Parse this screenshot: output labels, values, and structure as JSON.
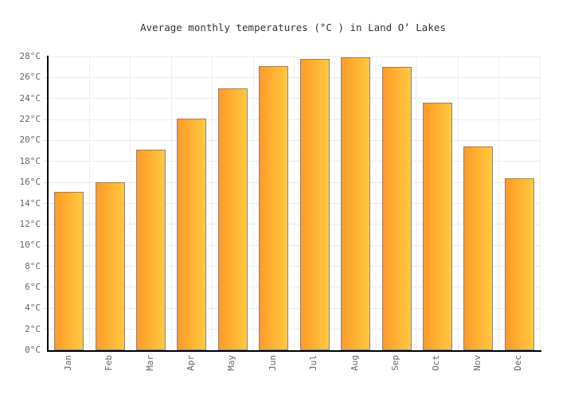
{
  "chart_data": {
    "type": "bar",
    "title": "Average monthly temperatures (°C ) in Land O’ Lakes",
    "categories": [
      "Jan",
      "Feb",
      "Mar",
      "Apr",
      "May",
      "Jun",
      "Jul",
      "Aug",
      "Sep",
      "Oct",
      "Nov",
      "Dec"
    ],
    "values": [
      15.1,
      16,
      19.1,
      22.1,
      25,
      27.1,
      27.8,
      27.9,
      27,
      23.6,
      19.4,
      16.4
    ],
    "unit": "°C",
    "xlabel": "",
    "ylabel": "",
    "ylim": [
      0,
      28
    ],
    "ytick_step": 2,
    "ytick_labels": [
      "0°C",
      "2°C",
      "4°C",
      "6°C",
      "8°C",
      "10°C",
      "12°C",
      "14°C",
      "16°C",
      "18°C",
      "20°C",
      "22°C",
      "24°C",
      "26°C",
      "28°C"
    ],
    "grid": true,
    "legend": false,
    "colors": {
      "bar_gradient_left": "#ff9a28",
      "bar_gradient_right": "#ffc83e",
      "bar_border": "#84848e",
      "gridline_horizontal": "#ebebeb",
      "gridline_vertical": "#efefef",
      "axis": "#000000",
      "tick_label": "#666666",
      "title": "#333333",
      "background": "#ffffff"
    }
  }
}
